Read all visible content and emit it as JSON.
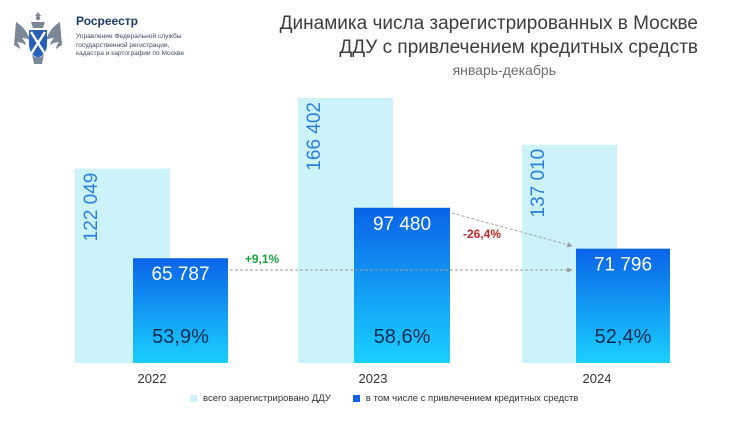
{
  "org": {
    "name": "Росреестр",
    "sub_lines": [
      "Управление Федеральной службы",
      "государственной регистрации,",
      "кадастра и картографии по Москве"
    ]
  },
  "title_lines": [
    "Динамика числа зарегистрированных в Москве",
    "ДДУ с привлечением кредитных средств"
  ],
  "subtitle": "январь-декабрь",
  "colors": {
    "total": "#ccf3fa",
    "credit_top": "#0a63e8",
    "credit_bottom": "#1ad0ff",
    "total_label": "#2c7fe0",
    "credit_label": "#ffffff",
    "share_label": "#0b2a4f",
    "change_up": "#1aa33b",
    "change_down": "#c62828",
    "arrow": "#9a9a9a"
  },
  "chart_data": {
    "type": "bar",
    "categories": [
      "2022",
      "2023",
      "2024"
    ],
    "series": [
      {
        "name": "всего зарегистрировано ДДУ",
        "values": [
          122049,
          166402,
          137010
        ],
        "labels": [
          "122 049",
          "166 402",
          "137 010"
        ]
      },
      {
        "name": "в том числе с привлечением кредитных средств",
        "values": [
          65787,
          97480,
          71796
        ],
        "labels": [
          "65 787",
          "97 480",
          "71 796"
        ],
        "shares": [
          "53,9%",
          "58,6%",
          "52,4%"
        ]
      }
    ],
    "annotations": [
      {
        "text": "+9,1%",
        "from": "2022",
        "to": "2024",
        "type": "up"
      },
      {
        "text": "-26,4%",
        "from": "2023",
        "to": "2024",
        "type": "down"
      }
    ],
    "legend_position": "bottom"
  }
}
